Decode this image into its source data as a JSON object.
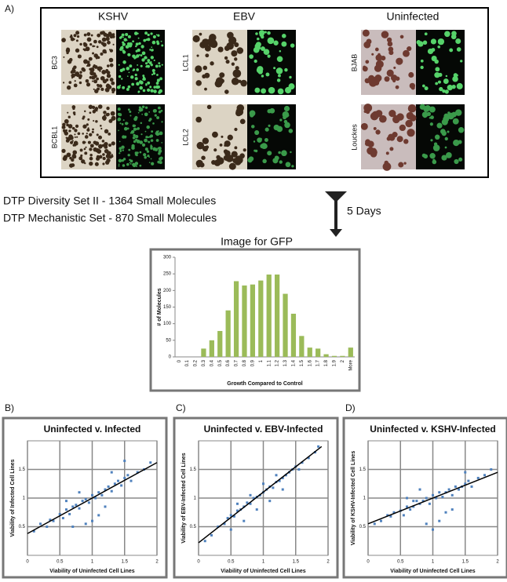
{
  "panel_a": {
    "label": "A)",
    "columns": [
      {
        "title": "KSHV",
        "rows": [
          "BC3",
          "BCBL1"
        ]
      },
      {
        "title": "EBV",
        "rows": [
          "LCL1",
          "LCL2"
        ]
      },
      {
        "title": "Uninfected",
        "rows": [
          "BJAB",
          "Louckes"
        ]
      }
    ]
  },
  "workflow": {
    "lines": [
      "DTP Diversity Set II - 1364 Small Molecules",
      "DTP Mechanistic Set - 870 Small Molecules"
    ],
    "duration": "5 Days",
    "readout": "Image for GFP"
  },
  "chart_data": [
    {
      "type": "bar",
      "xlabel": "Growth Compared to Control",
      "ylabel": "# of Molecules",
      "color": "#9bbb59",
      "categories": [
        "0",
        "0.1",
        "0.2",
        "0.3",
        "0.4",
        "0.5",
        "0.6",
        "0.7",
        "0.8",
        "0.9",
        "1",
        "1.1",
        "1.2",
        "1.3",
        "1.4",
        "1.5",
        "1.6",
        "1.7",
        "1.8",
        "1.9",
        "2",
        "More"
      ],
      "values": [
        0,
        0,
        0,
        25,
        50,
        78,
        140,
        228,
        215,
        218,
        230,
        248,
        248,
        190,
        130,
        63,
        28,
        25,
        8,
        3,
        3,
        28
      ],
      "ylim": [
        0,
        300
      ],
      "yticks": [
        0,
        50,
        100,
        150,
        200,
        250,
        300
      ],
      "grid": false
    },
    {
      "type": "scatter",
      "panel_label": "B)",
      "title": "Uninfected v. Infected",
      "xlabel": "Viability of Uninfected Cell Lines",
      "ylabel": "Viability of Infected Cell Lines",
      "color": "#4f81bd",
      "x": [
        0.1,
        0.2,
        0.3,
        0.35,
        0.4,
        0.5,
        0.55,
        0.6,
        0.65,
        0.7,
        0.75,
        0.8,
        0.85,
        0.9,
        0.95,
        1.0,
        1.05,
        1.1,
        1.15,
        1.2,
        1.25,
        1.3,
        1.35,
        1.4,
        1.45,
        1.5,
        1.55,
        1.6,
        1.7,
        1.8,
        1.9,
        0.9,
        1.0,
        1.1,
        1.2,
        0.6,
        0.8,
        1.3,
        1.5,
        0.7
      ],
      "y": [
        0.42,
        0.55,
        0.5,
        0.62,
        0.6,
        0.72,
        0.65,
        0.8,
        0.72,
        0.85,
        0.88,
        0.82,
        0.95,
        0.98,
        0.92,
        1.05,
        1.0,
        1.1,
        1.05,
        1.15,
        1.2,
        1.12,
        1.25,
        1.3,
        1.22,
        1.35,
        1.4,
        1.3,
        1.45,
        1.5,
        1.62,
        0.55,
        0.6,
        0.7,
        0.85,
        0.95,
        1.1,
        1.45,
        1.65,
        0.5
      ],
      "trendline": {
        "x": [
          0,
          2
        ],
        "y": [
          0.38,
          1.62
        ]
      },
      "xlim": [
        0,
        2
      ],
      "ylim": [
        0,
        2
      ],
      "xticks": [
        0,
        0.5,
        1,
        1.5,
        2
      ],
      "yticks": [
        0.5,
        1,
        1.5
      ],
      "grid": true
    },
    {
      "type": "scatter",
      "panel_label": "C)",
      "title": "Uninfected v. EBV-Infected",
      "xlabel": "Viability of Uninfected Cell Lines",
      "ylabel": "Viability of EBV-Infected Cell Lines",
      "color": "#4f81bd",
      "x": [
        0.1,
        0.2,
        0.3,
        0.4,
        0.45,
        0.5,
        0.55,
        0.6,
        0.65,
        0.7,
        0.75,
        0.8,
        0.85,
        0.9,
        0.95,
        1.0,
        1.05,
        1.1,
        1.15,
        1.2,
        1.25,
        1.3,
        1.35,
        1.4,
        1.45,
        1.5,
        1.55,
        1.6,
        1.7,
        1.8,
        1.85,
        0.5,
        0.7,
        0.9,
        1.1,
        1.3,
        0.6,
        0.8,
        1.0,
        1.2
      ],
      "y": [
        0.25,
        0.35,
        0.5,
        0.55,
        0.65,
        0.7,
        0.68,
        0.78,
        0.8,
        0.85,
        0.92,
        0.9,
        1.0,
        1.02,
        1.05,
        1.1,
        1.15,
        1.2,
        1.18,
        1.28,
        1.3,
        1.35,
        1.4,
        1.45,
        1.5,
        1.55,
        1.5,
        1.62,
        1.7,
        1.8,
        1.9,
        0.45,
        0.6,
        0.8,
        0.95,
        1.15,
        0.9,
        1.05,
        1.25,
        1.4
      ],
      "trendline": {
        "x": [
          0,
          1.9
        ],
        "y": [
          0.22,
          1.9
        ]
      },
      "xlim": [
        0,
        2
      ],
      "ylim": [
        0,
        2
      ],
      "xticks": [
        0,
        0.5,
        1,
        1.5,
        2
      ],
      "yticks": [
        0.5,
        1,
        1.5
      ],
      "grid": true
    },
    {
      "type": "scatter",
      "panel_label": "D)",
      "title": "Uninfected v. KSHV-Infected",
      "xlabel": "Viability of Uninfected Cell Lines",
      "ylabel": "Viability of KSHV-Infected Cell Lines",
      "color": "#4f81bd",
      "x": [
        0.1,
        0.2,
        0.3,
        0.35,
        0.4,
        0.5,
        0.55,
        0.6,
        0.65,
        0.7,
        0.75,
        0.8,
        0.85,
        0.9,
        0.95,
        1.0,
        1.05,
        1.1,
        1.15,
        1.2,
        1.25,
        1.3,
        1.35,
        1.4,
        1.45,
        1.5,
        1.55,
        1.6,
        1.7,
        1.8,
        1.9,
        0.9,
        1.0,
        1.1,
        1.2,
        0.6,
        0.8,
        1.3,
        1.5,
        0.7
      ],
      "y": [
        0.55,
        0.6,
        0.7,
        0.68,
        0.75,
        0.78,
        0.7,
        0.85,
        0.8,
        0.85,
        0.95,
        0.9,
        0.95,
        1.0,
        0.9,
        1.05,
        1.0,
        1.1,
        1.02,
        1.1,
        1.15,
        1.05,
        1.2,
        1.15,
        1.2,
        1.25,
        1.3,
        1.2,
        1.35,
        1.4,
        1.5,
        0.55,
        0.45,
        0.6,
        0.75,
        1.0,
        1.15,
        0.8,
        1.45,
        0.95
      ],
      "trendline": {
        "x": [
          0,
          2
        ],
        "y": [
          0.55,
          1.45
        ]
      },
      "xlim": [
        0,
        2
      ],
      "ylim": [
        0,
        2
      ],
      "xticks": [
        0,
        0.5,
        1,
        1.5,
        2
      ],
      "yticks": [
        0.5,
        1,
        1.5
      ],
      "grid": true
    }
  ]
}
